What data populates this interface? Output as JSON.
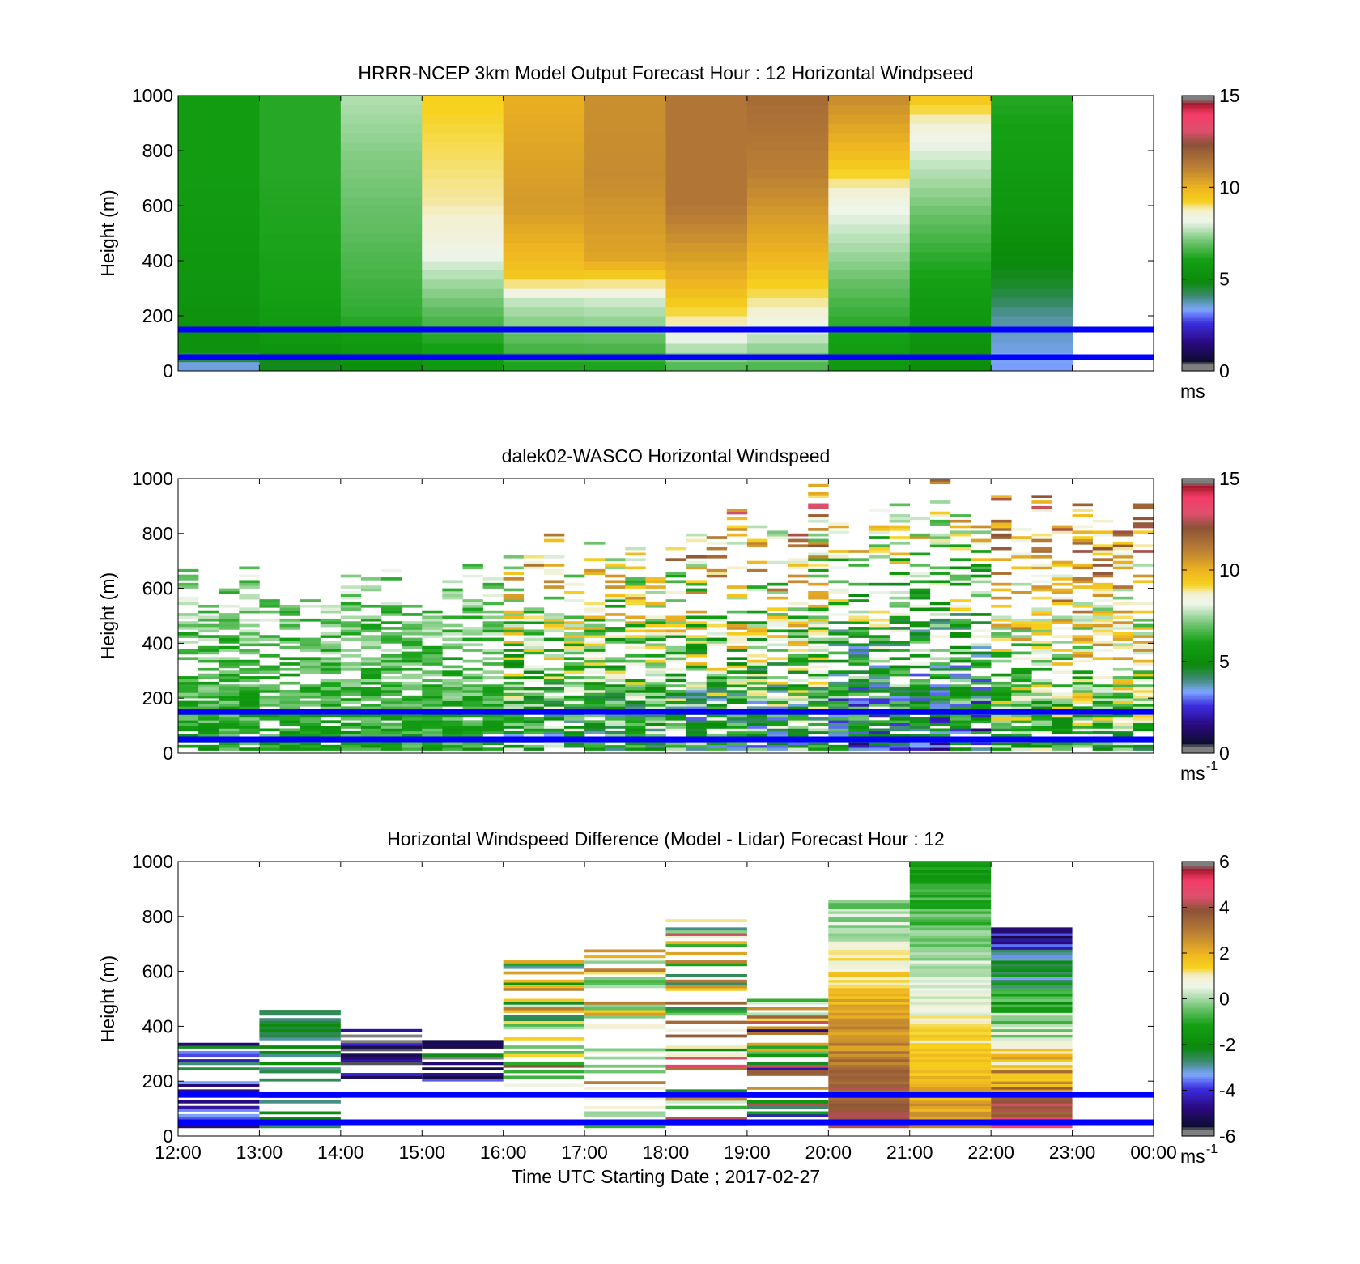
{
  "figure": {
    "x_tick_labels": [
      "12:00",
      "13:00",
      "14:00",
      "15:00",
      "16:00",
      "17:00",
      "18:00",
      "19:00",
      "20:00",
      "21:00",
      "22:00",
      "23:00",
      "00:00"
    ],
    "x_label": "Time UTC  Starting Date ; 2017-02-27",
    "y_label": "Height (m)",
    "y_tick_labels": [
      "0",
      "200",
      "400",
      "600",
      "800",
      "1000"
    ],
    "reference_line_color": "#0000ff",
    "reference_heights_m": [
      50,
      150
    ]
  },
  "colormaps": {
    "speed": {
      "stops": [
        [
          0.0,
          "#7f7f7f"
        ],
        [
          0.02,
          "#7f7f7f"
        ],
        [
          0.03,
          "#0d0d2e"
        ],
        [
          0.1,
          "#2a0a80"
        ],
        [
          0.17,
          "#3b2de0"
        ],
        [
          0.22,
          "#7ea6ff"
        ],
        [
          0.27,
          "#3c8a6e"
        ],
        [
          0.32,
          "#0b8a0b"
        ],
        [
          0.4,
          "#14a014"
        ],
        [
          0.46,
          "#66c066"
        ],
        [
          0.5,
          "#a8dba8"
        ],
        [
          0.54,
          "#eef5ea"
        ],
        [
          0.58,
          "#f3f0d0"
        ],
        [
          0.61,
          "#f7d21e"
        ],
        [
          0.66,
          "#eeb520"
        ],
        [
          0.74,
          "#b87d35"
        ],
        [
          0.82,
          "#8c5238"
        ],
        [
          0.87,
          "#e0506e"
        ],
        [
          0.93,
          "#f43c68"
        ],
        [
          0.97,
          "#a01828"
        ],
        [
          0.98,
          "#7f7f7f"
        ],
        [
          1.0,
          "#7f7f7f"
        ]
      ]
    }
  },
  "charts": [
    {
      "title": "HRRR-NCEP 3km Model Output   Forecast Hour : 12 Horizontal Windpseed",
      "colorbar": {
        "ticks": [
          "0",
          "5",
          "10",
          "15"
        ],
        "unit": "ms",
        "unit_sup": ""
      }
    },
    {
      "title": "dalek02-WASCO  Horizontal Windspeed",
      "colorbar": {
        "ticks": [
          "0",
          "5",
          "10",
          "15"
        ],
        "unit": "ms",
        "unit_sup": "-1"
      }
    },
    {
      "title": "Horizontal Windspeed Difference (Model - Lidar) Forecast Hour : 12",
      "colorbar": {
        "ticks": [
          "-6",
          "-4",
          "-2",
          "0",
          "2",
          "4",
          "6"
        ],
        "unit": "ms",
        "unit_sup": "-1"
      }
    }
  ],
  "chart_data": [
    {
      "type": "heatmap",
      "title": "HRRR-NCEP 3km Model Output   Forecast Hour : 12 Horizontal Windpseed",
      "xlabel": "",
      "ylabel": "Height (m)",
      "x_range_hours_utc": [
        12,
        24
      ],
      "ylim": [
        0,
        1000
      ],
      "value_range": [
        0,
        15
      ],
      "colorbar_unit": "ms",
      "reference_lines_m": [
        50,
        150
      ],
      "cells": [
        {
          "t": "12:00-13:00",
          "profile_m": [
            [
              0,
              3.0
            ],
            [
              80,
              5.2
            ],
            [
              200,
              5.3
            ],
            [
              400,
              5.5
            ],
            [
              700,
              5.8
            ],
            [
              1000,
              5.8
            ]
          ]
        },
        {
          "t": "13:00-14:00",
          "profile_m": [
            [
              0,
              4.5
            ],
            [
              100,
              5.5
            ],
            [
              300,
              6.0
            ],
            [
              700,
              6.2
            ],
            [
              1000,
              6.2
            ]
          ]
        },
        {
          "t": "14:00-15:00",
          "profile_m": [
            [
              0,
              5.0
            ],
            [
              200,
              6.3
            ],
            [
              500,
              6.8
            ],
            [
              800,
              7.2
            ],
            [
              1000,
              7.6
            ]
          ]
        },
        {
          "t": "15:00-16:00",
          "profile_m": [
            [
              0,
              5.5
            ],
            [
              300,
              7.3
            ],
            [
              450,
              8.3
            ],
            [
              600,
              8.8
            ],
            [
              1000,
              9.2
            ]
          ]
        },
        {
          "t": "16:00-17:00",
          "profile_m": [
            [
              0,
              6.0
            ],
            [
              250,
              7.7
            ],
            [
              350,
              9.5
            ],
            [
              600,
              10.5
            ],
            [
              1000,
              10.0
            ]
          ]
        },
        {
          "t": "17:00-18:00",
          "profile_m": [
            [
              0,
              6.0
            ],
            [
              250,
              7.8
            ],
            [
              400,
              10.2
            ],
            [
              700,
              10.8
            ],
            [
              1000,
              10.7
            ]
          ]
        },
        {
          "t": "18:00-19:00",
          "profile_m": [
            [
              0,
              6.5
            ],
            [
              150,
              8.5
            ],
            [
              300,
              9.8
            ],
            [
              600,
              11.3
            ],
            [
              1000,
              11.3
            ]
          ]
        },
        {
          "t": "19:00-20:00",
          "profile_m": [
            [
              0,
              6.5
            ],
            [
              200,
              8.5
            ],
            [
              400,
              9.8
            ],
            [
              700,
              11.0
            ],
            [
              1000,
              11.6
            ]
          ]
        },
        {
          "t": "20:00-21:00",
          "profile_m": [
            [
              0,
              5.5
            ],
            [
              300,
              6.8
            ],
            [
              600,
              8.2
            ],
            [
              800,
              9.8
            ],
            [
              1000,
              10.8
            ]
          ]
        },
        {
          "t": "21:00-22:00",
          "profile_m": [
            [
              0,
              5.0
            ],
            [
              400,
              6.2
            ],
            [
              700,
              7.5
            ],
            [
              850,
              8.2
            ],
            [
              1000,
              9.5
            ]
          ]
        },
        {
          "t": "22:00-23:00",
          "profile_m": [
            [
              0,
              3.2
            ],
            [
              200,
              3.8
            ],
            [
              300,
              4.5
            ],
            [
              600,
              5.5
            ],
            [
              1000,
              6.2
            ]
          ]
        }
      ]
    },
    {
      "type": "heatmap",
      "title": "dalek02-WASCO  Horizontal Windspeed",
      "xlabel": "",
      "ylabel": "Height (m)",
      "x_range_hours_utc": [
        12,
        24
      ],
      "ylim": [
        0,
        1000
      ],
      "value_range": [
        0,
        15
      ],
      "colorbar_unit": "ms-1",
      "reference_lines_m": [
        50,
        150
      ],
      "segments": [
        {
          "t0": "12:00",
          "t1": "16:00",
          "max_height_m": 700,
          "typical_speed": [
            5,
            9
          ]
        },
        {
          "t0": "16:00",
          "t1": "18:00",
          "max_height_m": 800,
          "typical_speed": [
            3,
            13
          ]
        },
        {
          "t0": "18:00",
          "t1": "20:00",
          "max_height_m": 1000,
          "typical_speed": [
            2,
            14
          ]
        },
        {
          "t0": "20:00",
          "t1": "22:00",
          "max_height_m": 1000,
          "typical_speed": [
            1,
            12
          ]
        },
        {
          "t0": "22:00",
          "t1": "00:00",
          "max_height_m": 1000,
          "typical_speed": [
            4,
            14
          ]
        }
      ]
    },
    {
      "type": "heatmap",
      "title": "Horizontal Windspeed Difference (Model - Lidar) Forecast Hour : 12",
      "xlabel": "Time UTC  Starting Date ; 2017-02-27",
      "ylabel": "Height (m)",
      "x_range_hours_utc": [
        12,
        24
      ],
      "ylim": [
        0,
        1000
      ],
      "value_range": [
        -6,
        6
      ],
      "colorbar_unit": "ms-1",
      "reference_lines_m": [
        50,
        150
      ],
      "bands": [
        {
          "t": "12:00-13:00",
          "bottom_m": 30,
          "top_m": 350,
          "diff": [
            -5,
            -2
          ]
        },
        {
          "t": "13:00-14:00",
          "bottom_m": 30,
          "top_m": 460,
          "diff": [
            -3,
            -2
          ]
        },
        {
          "t": "14:00-15:00",
          "bottom_m": 200,
          "top_m": 390,
          "diff": [
            -6,
            -4
          ]
        },
        {
          "t": "15:00-16:00",
          "bottom_m": 200,
          "top_m": 370,
          "diff": [
            -6,
            -2
          ]
        },
        {
          "t": "16:00-17:00",
          "bottom_m": 160,
          "top_m": 640,
          "diff": [
            -4,
            4
          ]
        },
        {
          "t": "17:00-18:00",
          "bottom_m": 30,
          "top_m": 680,
          "diff": [
            -1,
            3
          ]
        },
        {
          "t": "18:00-19:00",
          "bottom_m": 30,
          "top_m": 790,
          "diff": [
            -3,
            5
          ]
        },
        {
          "t": "19:00-20:00",
          "bottom_m": 30,
          "top_m": 500,
          "diff": [
            -5,
            5
          ]
        },
        {
          "t": "20:00-21:00",
          "bottom_m": 30,
          "top_m": 860,
          "diff": [
            -1,
            5
          ]
        },
        {
          "t": "21:00-22:00",
          "bottom_m": 30,
          "top_m": 1000,
          "diff": [
            -2,
            3
          ]
        },
        {
          "t": "22:00-23:00",
          "bottom_m": 30,
          "top_m": 760,
          "diff": [
            -6,
            6
          ]
        }
      ]
    }
  ]
}
